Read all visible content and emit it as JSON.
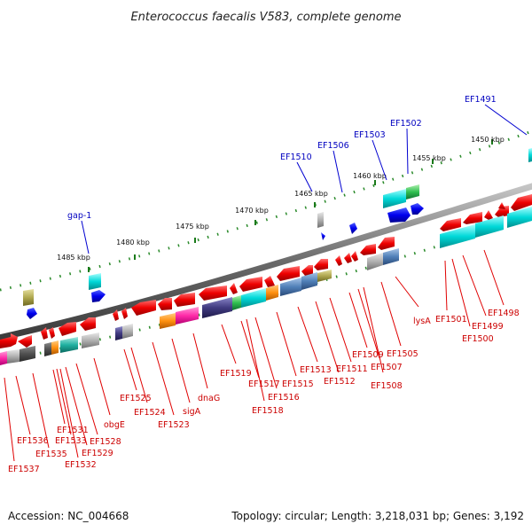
{
  "title": "Enterococcus faecalis V583, complete genome",
  "footer": {
    "accession": "Accession: NC_004668",
    "summary": "Topology: circular; Length: 3,218,031 bp; Genes: 3,192"
  },
  "scale_labels": [
    "1485 kbp",
    "1480 kbp",
    "1475 kbp",
    "1470 kbp",
    "1465 kbp",
    "1460 kbp",
    "1455 kbp",
    "1450 kbp"
  ],
  "upper_gene_labels": [
    "gap-1",
    "EF1510",
    "EF1506",
    "EF1503",
    "EF1502",
    "EF1491"
  ],
  "lower_gene_labels": [
    "EF1537",
    "EF1536",
    "EF1535",
    "EF1531",
    "EF1533",
    "EF1532",
    "EF1529",
    "EF1528",
    "obgE",
    "EF1525",
    "EF1524",
    "EF1523",
    "sigA",
    "dnaG",
    "EF1519",
    "EF1517",
    "EF1518",
    "EF1516",
    "EF1515",
    "EF1513",
    "EF1512",
    "EF1511",
    "EF1509",
    "EF1507",
    "EF1508",
    "EF1505",
    "lysA",
    "EF1501",
    "EF1500",
    "EF1499",
    "EF1498"
  ],
  "colors": {
    "backbone": "#7f7f7f",
    "gene_red": "#ff0000",
    "gene_blue": "#0000ff",
    "label_red": "#cc0000",
    "label_blue": "#0000c0"
  }
}
